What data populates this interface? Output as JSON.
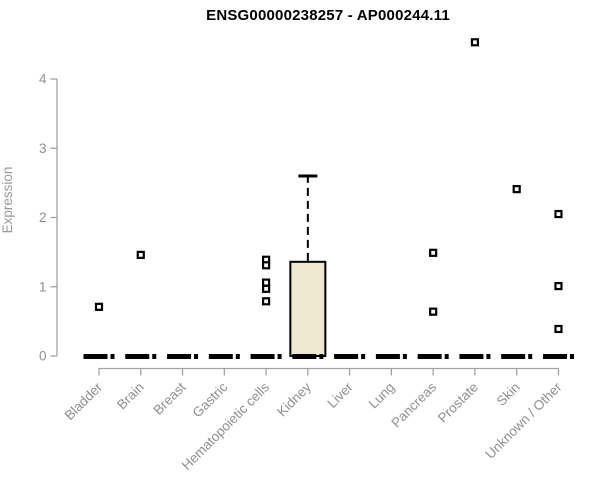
{
  "title": "ENSG00000238257 - AP000244.11",
  "chart_data": {
    "type": "box",
    "title": "ENSG00000238257 - AP000244.11",
    "xlabel": "",
    "ylabel": "Expression",
    "ylim": [
      0,
      4
    ],
    "yticks": [
      0,
      1,
      2,
      3,
      4
    ],
    "grid": false,
    "legend_position": "none",
    "categories": [
      "Bladder",
      "Brain",
      "Breast",
      "Gastric",
      "Hematopoietic cells",
      "Kidney",
      "Liver",
      "Lung",
      "Pancreas",
      "Prostate",
      "Skin",
      "Unknown / Other"
    ],
    "boxes": [
      {
        "category": "Bladder",
        "median": 0,
        "q1": 0,
        "q3": 0,
        "whisker_low": 0,
        "whisker_high": 0,
        "outliers": [
          0.71
        ]
      },
      {
        "category": "Brain",
        "median": 0,
        "q1": 0,
        "q3": 0,
        "whisker_low": 0,
        "whisker_high": 0,
        "outliers": [
          1.46
        ]
      },
      {
        "category": "Breast",
        "median": 0,
        "q1": 0,
        "q3": 0,
        "whisker_low": 0,
        "whisker_high": 0,
        "outliers": []
      },
      {
        "category": "Gastric",
        "median": 0,
        "q1": 0,
        "q3": 0,
        "whisker_low": 0,
        "whisker_high": 0,
        "outliers": []
      },
      {
        "category": "Hematopoietic cells",
        "median": 0,
        "q1": 0,
        "q3": 0,
        "whisker_low": 0,
        "whisker_high": 0,
        "outliers": [
          1.39,
          1.31,
          1.06,
          0.97,
          0.79
        ]
      },
      {
        "category": "Kidney",
        "median": 0,
        "q1": 0,
        "q3": 1.36,
        "whisker_low": 0,
        "whisker_high": 2.6,
        "outliers": []
      },
      {
        "category": "Liver",
        "median": 0,
        "q1": 0,
        "q3": 0,
        "whisker_low": 0,
        "whisker_high": 0,
        "outliers": []
      },
      {
        "category": "Lung",
        "median": 0,
        "q1": 0,
        "q3": 0,
        "whisker_low": 0,
        "whisker_high": 0,
        "outliers": []
      },
      {
        "category": "Pancreas",
        "median": 0,
        "q1": 0,
        "q3": 0,
        "whisker_low": 0,
        "whisker_high": 0,
        "outliers": [
          1.49,
          0.64
        ]
      },
      {
        "category": "Prostate",
        "median": 0,
        "q1": 0,
        "q3": 0,
        "whisker_low": 0,
        "whisker_high": 0,
        "outliers": [
          4.53
        ]
      },
      {
        "category": "Skin",
        "median": 0,
        "q1": 0,
        "q3": 0,
        "whisker_low": 0,
        "whisker_high": 0,
        "outliers": [
          2.41
        ]
      },
      {
        "category": "Unknown / Other",
        "median": 0,
        "q1": 0,
        "q3": 0,
        "whisker_low": 0,
        "whisker_high": 0,
        "outliers": [
          2.05,
          1.01,
          0.39
        ]
      }
    ],
    "colors": {
      "box_fill": "#EDE8CF",
      "box_stroke": "#000000",
      "median_color": "#000000",
      "outlier_stroke": "#000000",
      "outlier_fill": "#FFFFFF",
      "axis_color": "#A3A3A3",
      "tick_text_color": "#8F8F8F",
      "title_color": "#000000"
    }
  }
}
